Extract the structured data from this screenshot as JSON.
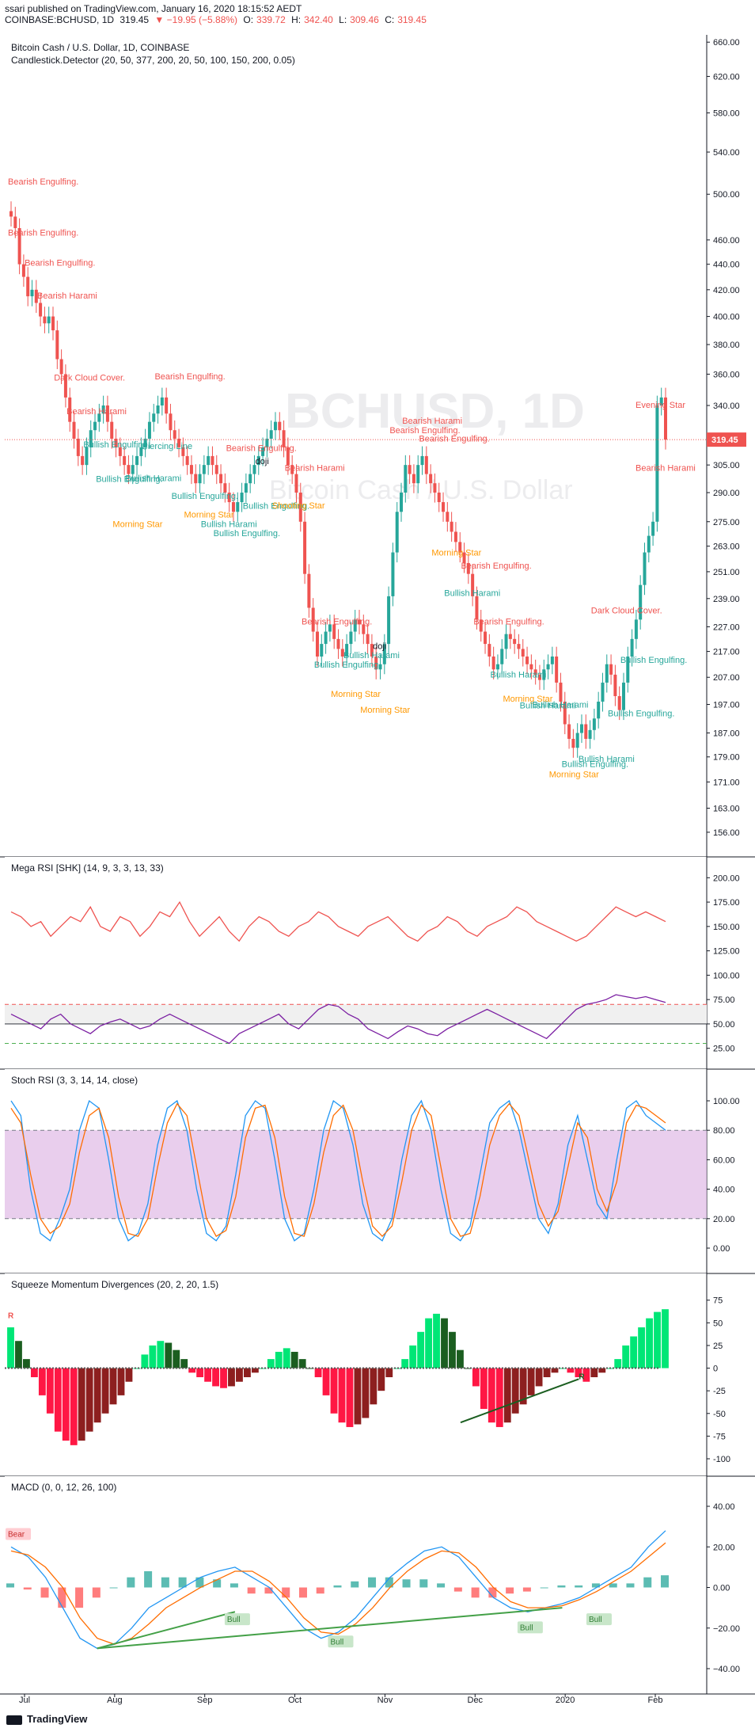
{
  "header": {
    "published": "ssari published on TradingView.com, January 16, 2020 18:15:52 AEDT",
    "symbol": "COINBASE:BCHUSD, 1D",
    "price": "319.45",
    "change": "▼ −19.95 (−5.88%)",
    "ohlc": {
      "o_label": "O:",
      "o": "339.72",
      "h_label": "H:",
      "h": "342.40",
      "l_label": "L:",
      "l": "309.46",
      "c_label": "C:",
      "c": "319.45"
    }
  },
  "colors": {
    "up": "#26a69a",
    "down": "#ef5350",
    "axis": "#131722",
    "grid": "#e0e3eb"
  },
  "chart_data": [
    {
      "type": "candlestick",
      "title": "Bitcoin Cash / U.S. Dollar, 1D, COINBASE",
      "subtitle": "Candlestick.Detector (20, 50, 377, 200, 20, 50, 100, 150, 200, 0.05)",
      "watermark": "BCHUSD, 1D",
      "watermark_sub": "Bitcoin Cash / U.S. Dollar",
      "last_price": "319.45",
      "y_ticks": [
        "660.00",
        "620.00",
        "580.00",
        "540.00",
        "500.00",
        "460.00",
        "440.00",
        "420.00",
        "400.00",
        "380.00",
        "360.00",
        "340.00",
        "305.00",
        "290.00",
        "275.00",
        "263.00",
        "251.00",
        "239.00",
        "227.00",
        "217.00",
        "207.00",
        "197.00",
        "187.00",
        "179.00",
        "171.00",
        "163.00",
        "156.00"
      ],
      "y_tick_values": [
        660,
        620,
        580,
        540,
        500,
        460,
        440,
        420,
        400,
        380,
        360,
        340,
        305,
        290,
        275,
        263,
        251,
        239,
        227,
        217,
        207,
        197,
        187,
        179,
        171,
        163,
        156
      ],
      "x_ticks": [
        "Jul",
        "Aug",
        "Sep",
        "Oct",
        "Nov",
        "Dec",
        "2020",
        "Feb"
      ],
      "close": [
        480,
        470,
        440,
        430,
        415,
        420,
        410,
        400,
        395,
        400,
        390,
        370,
        360,
        345,
        330,
        320,
        310,
        305,
        315,
        325,
        330,
        335,
        340,
        330,
        320,
        315,
        310,
        305,
        300,
        305,
        310,
        315,
        320,
        330,
        335,
        340,
        345,
        335,
        325,
        320,
        315,
        310,
        305,
        300,
        295,
        300,
        305,
        310,
        305,
        300,
        295,
        290,
        285,
        280,
        285,
        290,
        295,
        300,
        305,
        310,
        315,
        320,
        325,
        330,
        325,
        315,
        305,
        300,
        290,
        275,
        250,
        235,
        225,
        215,
        220,
        225,
        228,
        222,
        218,
        215,
        220,
        225,
        230,
        228,
        224,
        220,
        215,
        210,
        212,
        220,
        240,
        260,
        280,
        290,
        305,
        300,
        295,
        305,
        310,
        300,
        295,
        290,
        285,
        280,
        275,
        270,
        265,
        260,
        255,
        250,
        240,
        230,
        225,
        220,
        215,
        210,
        212,
        218,
        224,
        222,
        220,
        218,
        215,
        212,
        210,
        208,
        206,
        210,
        212,
        215,
        205,
        198,
        190,
        185,
        182,
        187,
        190,
        185,
        188,
        192,
        198,
        205,
        212,
        208,
        200,
        195,
        205,
        215,
        222,
        230,
        245,
        260,
        268,
        275,
        340,
        345,
        319.45
      ],
      "annotations": [
        {
          "text": "Bearish Engulfing.",
          "color": "down"
        },
        {
          "text": "Bearish Engulfing.",
          "color": "down"
        },
        {
          "text": "Bearish Engulfing.",
          "color": "down"
        },
        {
          "text": "Bearish Harami",
          "color": "down"
        },
        {
          "text": "Dark Cloud Cover.",
          "color": "down"
        },
        {
          "text": "Bearish Harami",
          "color": "down"
        },
        {
          "text": "Bullish Engulfing.",
          "color": "up"
        },
        {
          "text": "Bullish Engulfing.",
          "color": "up"
        },
        {
          "text": "Morning Star",
          "color": "star"
        },
        {
          "text": "Bullish Harami",
          "color": "up"
        },
        {
          "text": "Piercing Line",
          "color": "up"
        },
        {
          "text": "Bearish Engulfing.",
          "color": "down"
        },
        {
          "text": "Bullish Engulfing.",
          "color": "up"
        },
        {
          "text": "Morning Star",
          "color": "star"
        },
        {
          "text": "Bullish Harami",
          "color": "up"
        },
        {
          "text": "Bullish Engulfing.",
          "color": "up"
        },
        {
          "text": "Bearish Engulfing.",
          "color": "down"
        },
        {
          "text": "Bullish Engulfing.",
          "color": "up"
        },
        {
          "text": "doji",
          "color": "axis"
        },
        {
          "text": "Shooting Star",
          "color": "star"
        },
        {
          "text": "Bearish Harami",
          "color": "down"
        },
        {
          "text": "Bearish Engulfing.",
          "color": "down"
        },
        {
          "text": "Bullish Engulfing.",
          "color": "up"
        },
        {
          "text": "Morning Star",
          "color": "star"
        },
        {
          "text": "Bullish Harami",
          "color": "up"
        },
        {
          "text": "Morning Star",
          "color": "star"
        },
        {
          "text": "doji",
          "color": "axis"
        },
        {
          "text": "Bearish Engulfing.",
          "color": "down"
        },
        {
          "text": "Bearish Harami",
          "color": "down"
        },
        {
          "text": "Bearish Engulfing.",
          "color": "down"
        },
        {
          "text": "Morning Star",
          "color": "star"
        },
        {
          "text": "Bullish Harami",
          "color": "up"
        },
        {
          "text": "Bearish Engulfing.",
          "color": "down"
        },
        {
          "text": "Bearish Engulfing.",
          "color": "down"
        },
        {
          "text": "Bullish Harami",
          "color": "up"
        },
        {
          "text": "Morning Star",
          "color": "star"
        },
        {
          "text": "Bullish Harami",
          "color": "up"
        },
        {
          "text": "Bullish Harami",
          "color": "up"
        },
        {
          "text": "Morning Star",
          "color": "star"
        },
        {
          "text": "Bullish Engulfing.",
          "color": "up"
        },
        {
          "text": "Bullish Harami",
          "color": "up"
        },
        {
          "text": "Dark Cloud Cover.",
          "color": "down"
        },
        {
          "text": "Bullish Engulfing.",
          "color": "up"
        },
        {
          "text": "Bullish Engulfing.",
          "color": "up"
        },
        {
          "text": "Bearish Harami",
          "color": "down"
        },
        {
          "text": "Evening Star",
          "color": "down"
        }
      ]
    },
    {
      "type": "line",
      "title": "Mega RSI [SHK] (14, 9, 3, 3, 13, 33)",
      "y_ticks": [
        "200.00",
        "175.00",
        "150.00",
        "125.00",
        "100.00",
        "75.00",
        "50.00",
        "25.00"
      ],
      "y_tick_values": [
        200,
        175,
        150,
        125,
        100,
        75,
        50,
        25
      ],
      "upper_series_values": [
        165,
        160,
        150,
        155,
        140,
        150,
        160,
        155,
        170,
        150,
        145,
        160,
        155,
        140,
        150,
        165,
        160,
        175,
        155,
        140,
        150,
        160,
        145,
        135,
        150,
        160,
        155,
        145,
        140,
        150,
        155,
        165,
        160,
        150,
        145,
        140,
        150,
        155,
        160,
        150,
        140,
        135,
        145,
        150,
        160,
        155,
        145,
        140,
        150,
        155,
        160,
        170,
        165,
        155,
        150,
        145,
        140,
        135,
        140,
        150,
        160,
        170,
        165,
        160,
        165,
        160,
        155
      ],
      "lower_series_values": [
        60,
        55,
        50,
        45,
        55,
        60,
        50,
        45,
        40,
        48,
        52,
        55,
        50,
        45,
        48,
        55,
        60,
        55,
        50,
        45,
        40,
        35,
        30,
        40,
        45,
        50,
        55,
        60,
        50,
        45,
        55,
        65,
        70,
        68,
        60,
        55,
        45,
        40,
        35,
        42,
        48,
        45,
        40,
        38,
        45,
        50,
        55,
        60,
        65,
        60,
        55,
        50,
        45,
        40,
        35,
        45,
        55,
        65,
        70,
        72,
        75,
        80,
        78,
        76,
        78,
        75,
        72
      ],
      "upper_dashed_level": 70,
      "mid_level": 50,
      "lower_dashed_level": 30
    },
    {
      "type": "line",
      "title": "Stoch RSI (3, 3, 14, 14, close)",
      "y_ticks": [
        "100.00",
        "80.00",
        "60.00",
        "40.00",
        "20.00",
        "0.00"
      ],
      "y_tick_values": [
        100,
        80,
        60,
        40,
        20,
        0
      ],
      "band": [
        20,
        80
      ],
      "k_values": [
        100,
        90,
        40,
        10,
        5,
        20,
        40,
        80,
        100,
        95,
        60,
        20,
        5,
        10,
        30,
        70,
        95,
        100,
        80,
        40,
        10,
        5,
        15,
        50,
        90,
        100,
        95,
        60,
        20,
        5,
        10,
        40,
        80,
        100,
        95,
        70,
        30,
        10,
        5,
        20,
        60,
        90,
        100,
        80,
        40,
        10,
        5,
        15,
        50,
        85,
        95,
        100,
        80,
        50,
        20,
        10,
        30,
        70,
        90,
        60,
        30,
        20,
        60,
        95,
        100,
        90,
        85,
        80
      ],
      "d_values": [
        95,
        85,
        50,
        20,
        10,
        15,
        30,
        65,
        90,
        95,
        75,
        35,
        10,
        8,
        20,
        55,
        85,
        98,
        90,
        55,
        20,
        8,
        12,
        35,
        75,
        95,
        97,
        75,
        35,
        10,
        8,
        30,
        65,
        90,
        97,
        80,
        45,
        15,
        8,
        15,
        45,
        80,
        97,
        90,
        55,
        20,
        8,
        10,
        35,
        70,
        90,
        98,
        90,
        60,
        30,
        15,
        25,
        55,
        85,
        75,
        40,
        25,
        45,
        85,
        97,
        95,
        90,
        85
      ]
    },
    {
      "type": "bar",
      "title": "Squeeze Momentum Divergences (20, 2, 20, 1.5)",
      "y_ticks": [
        "75",
        "50",
        "25",
        "0",
        "-25",
        "-50",
        "-75",
        "-100"
      ],
      "y_tick_values": [
        75,
        50,
        25,
        0,
        -25,
        -50,
        -75,
        -100
      ],
      "values": [
        45,
        30,
        10,
        -10,
        -30,
        -50,
        -70,
        -80,
        -85,
        -80,
        -70,
        -60,
        -50,
        -40,
        -30,
        -15,
        0,
        15,
        25,
        30,
        28,
        20,
        10,
        -5,
        -10,
        -15,
        -20,
        -22,
        -20,
        -15,
        -10,
        -5,
        0,
        10,
        18,
        22,
        18,
        10,
        0,
        -10,
        -30,
        -50,
        -60,
        -65,
        -62,
        -55,
        -40,
        -25,
        -10,
        0,
        10,
        25,
        40,
        55,
        60,
        55,
        40,
        20,
        0,
        -20,
        -45,
        -60,
        -65,
        -60,
        -50,
        -40,
        -30,
        -20,
        -10,
        -5,
        0,
        -5,
        -10,
        -15,
        -10,
        -5,
        0,
        10,
        25,
        35,
        45,
        55,
        62,
        65
      ],
      "markers": [
        "R",
        "R"
      ]
    },
    {
      "type": "line",
      "title": "MACD (0, 0, 12, 26, 100)",
      "y_ticks": [
        "40.00",
        "20.00",
        "0.00",
        "−20.00",
        "−40.00"
      ],
      "y_tick_values": [
        40,
        20,
        0,
        -20,
        -40
      ],
      "macd_values": [
        20,
        15,
        5,
        -10,
        -25,
        -30,
        -28,
        -20,
        -10,
        -5,
        0,
        5,
        8,
        10,
        5,
        0,
        -10,
        -20,
        -25,
        -22,
        -15,
        -5,
        5,
        12,
        18,
        20,
        15,
        5,
        -5,
        -10,
        -12,
        -10,
        -8,
        -5,
        0,
        5,
        10,
        20,
        28
      ],
      "signal_values": [
        18,
        16,
        10,
        0,
        -15,
        -25,
        -28,
        -25,
        -18,
        -10,
        -5,
        0,
        4,
        8,
        8,
        3,
        -5,
        -15,
        -22,
        -23,
        -18,
        -10,
        0,
        8,
        14,
        18,
        17,
        10,
        0,
        -7,
        -10,
        -10,
        -9,
        -6,
        -2,
        3,
        8,
        15,
        22
      ],
      "histogram": [
        2,
        -1,
        -5,
        -10,
        -10,
        -5,
        0,
        5,
        8,
        5,
        5,
        5,
        4,
        2,
        -3,
        -3,
        -5,
        -5,
        -3,
        1,
        3,
        5,
        5,
        4,
        4,
        2,
        -2,
        -5,
        -5,
        -3,
        -2,
        0,
        1,
        1,
        2,
        2,
        2,
        5,
        6
      ],
      "labels": [
        "Bear",
        "Bull",
        "Bull",
        "Bull",
        "Bull"
      ]
    }
  ],
  "footer": {
    "brand": "TradingView"
  }
}
